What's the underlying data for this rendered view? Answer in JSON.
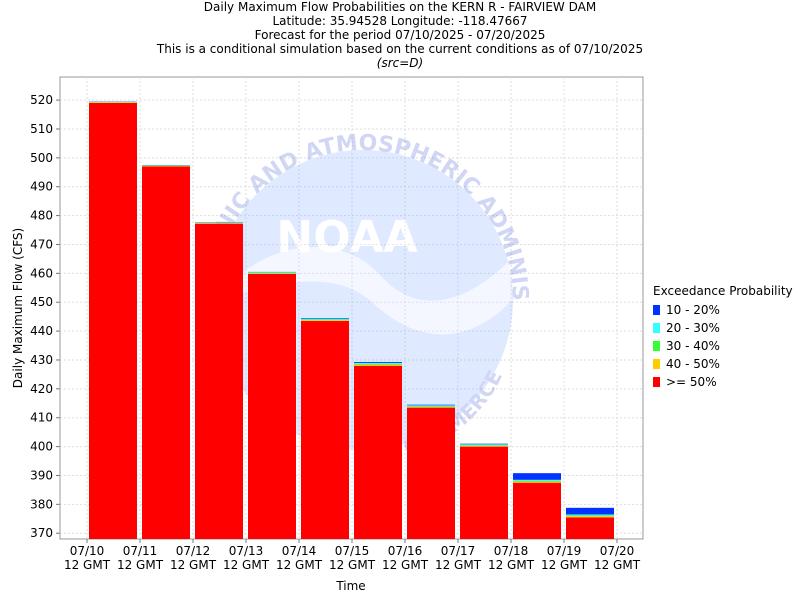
{
  "titles": {
    "line1": "Daily Maximum Flow Probabilities on the KERN R - FAIRVIEW DAM",
    "line2": "Latitude: 35.94528 Longitude: -118.47667",
    "line3": "Forecast for the period 07/10/2025 - 07/20/2025",
    "line4": "This is a conditional simulation based on the current conditions as of 07/10/2025",
    "line5": "(src=D)"
  },
  "watermark": {
    "top_text": "OCEANIC AND ATMOSPHERIC ADMINISTRATION",
    "logo_text": "NOAA",
    "bottom_text": "COMMERCE"
  },
  "chart_data": {
    "type": "bar",
    "stacked": true,
    "title": "Daily Maximum Flow Probabilities on the KERN R - FAIRVIEW DAM",
    "xlabel": "Time",
    "ylabel": "Daily Maximum Flow (CFS)",
    "ylim": [
      368,
      528
    ],
    "yticks": [
      370,
      380,
      390,
      400,
      410,
      420,
      430,
      440,
      450,
      460,
      470,
      480,
      490,
      500,
      510,
      520
    ],
    "xticks": [
      [
        "07/10",
        "12 GMT"
      ],
      [
        "07/11",
        "12 GMT"
      ],
      [
        "07/12",
        "12 GMT"
      ],
      [
        "07/13",
        "12 GMT"
      ],
      [
        "07/14",
        "12 GMT"
      ],
      [
        "07/15",
        "12 GMT"
      ],
      [
        "07/16",
        "12 GMT"
      ],
      [
        "07/17",
        "12 GMT"
      ],
      [
        "07/18",
        "12 GMT"
      ],
      [
        "07/19",
        "12 GMT"
      ],
      [
        "07/20",
        "12 GMT"
      ]
    ],
    "grid": true,
    "legend_title": "Exceedance Probability",
    "legend_position": "right",
    "legend": [
      {
        "label": "10 - 20%",
        "color": "#0033ff"
      },
      {
        "label": "20 - 30%",
        "color": "#33ffff"
      },
      {
        "label": "30 - 40%",
        "color": "#33ff33"
      },
      {
        "label": "40 - 50%",
        "color": "#ffcc00"
      },
      {
        "label": ">= 50%",
        "color": "#ff0000"
      }
    ],
    "bars": [
      {
        "from": "07/10",
        "to": "07/11",
        "p50": 519.0,
        "p40": 519.2,
        "p30": 519.3,
        "p20": 519.4,
        "p10": 519.5
      },
      {
        "from": "07/11",
        "to": "07/12",
        "p50": 497.0,
        "p40": 497.2,
        "p30": 497.3,
        "p20": 497.4,
        "p10": 497.5
      },
      {
        "from": "07/12",
        "to": "07/13",
        "p50": 477.2,
        "p40": 477.4,
        "p30": 477.5,
        "p20": 477.6,
        "p10": 477.7
      },
      {
        "from": "07/13",
        "to": "07/14",
        "p50": 459.8,
        "p40": 460.0,
        "p30": 460.2,
        "p20": 460.4,
        "p10": 460.5
      },
      {
        "from": "07/14",
        "to": "07/15",
        "p50": 443.5,
        "p40": 443.8,
        "p30": 444.0,
        "p20": 444.3,
        "p10": 444.5
      },
      {
        "from": "07/15",
        "to": "07/16",
        "p50": 428.0,
        "p40": 428.4,
        "p30": 428.7,
        "p20": 429.0,
        "p10": 429.3
      },
      {
        "from": "07/16",
        "to": "07/17",
        "p50": 413.5,
        "p40": 413.8,
        "p30": 414.0,
        "p20": 414.3,
        "p10": 414.5
      },
      {
        "from": "07/17",
        "to": "07/18",
        "p50": 400.0,
        "p40": 400.3,
        "p30": 400.5,
        "p20": 400.8,
        "p10": 401.0
      },
      {
        "from": "07/18",
        "to": "07/19",
        "p50": 387.5,
        "p40": 387.9,
        "p30": 388.2,
        "p20": 388.5,
        "p10": 390.8
      },
      {
        "from": "07/19",
        "to": "07/20",
        "p50": 375.5,
        "p40": 375.9,
        "p30": 376.2,
        "p20": 376.5,
        "p10": 378.8
      }
    ]
  }
}
